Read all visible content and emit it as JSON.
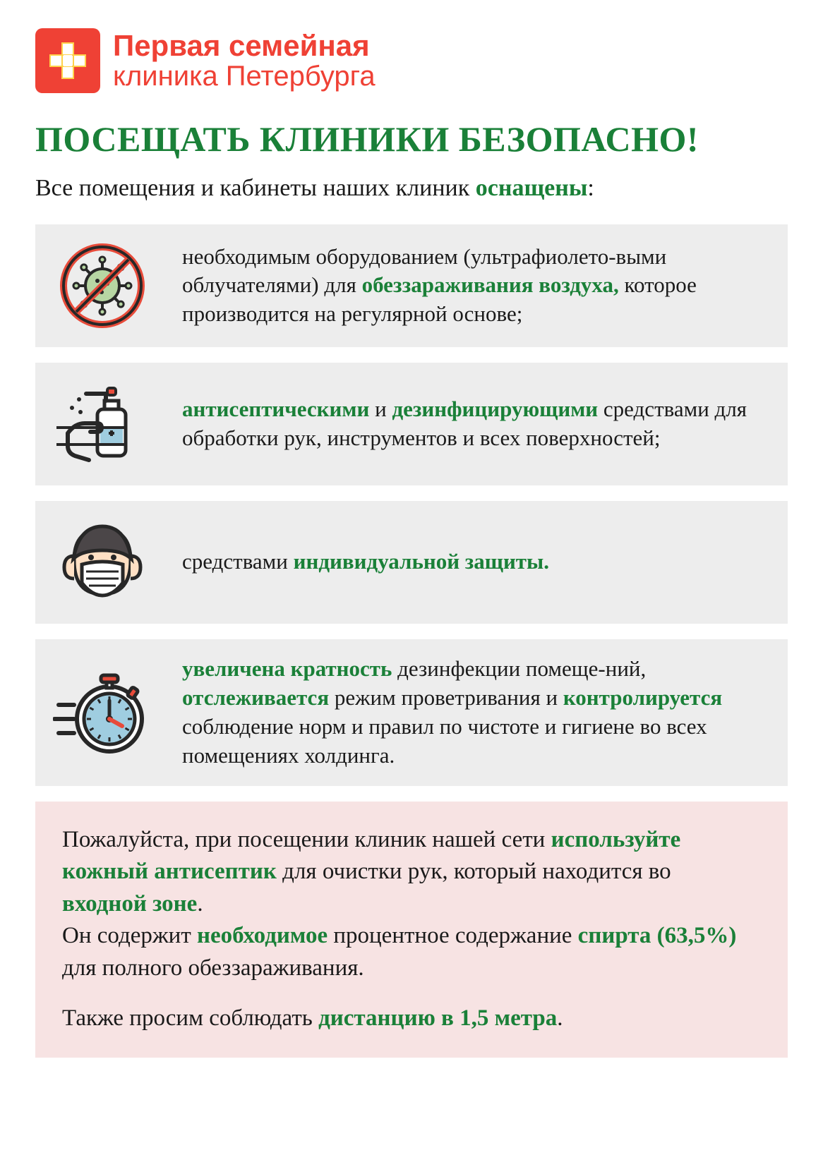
{
  "colors": {
    "red": "#ef4135",
    "green": "#1a8038",
    "card_bg": "#ededed",
    "notice_bg": "#f7e3e3",
    "text": "#1a1a1a",
    "white": "#ffffff",
    "icon_stroke": "#272727",
    "icon_accent_red": "#e84b3a",
    "icon_accent_blue": "#9fcde0",
    "icon_accent_green": "#b7d6a3",
    "icon_skin": "#ffe0c4",
    "icon_hair": "#4b4648"
  },
  "typography": {
    "headline_fontsize": 50,
    "subhead_fontsize": 34,
    "card_fontsize": 31,
    "notice_fontsize": 33,
    "logo_line1_fontsize": 42,
    "logo_line2_fontsize": 40
  },
  "logo": {
    "line1": "Первая семейная",
    "line2": "клиника Петербурга"
  },
  "headline": "ПОСЕЩАТЬ КЛИНИКИ БЕЗОПАСНО!",
  "subhead": {
    "pre": "Все помещения и кабинеты наших клиник ",
    "em": "оснащены",
    "post": ":"
  },
  "cards": [
    {
      "icon": "no-virus-icon",
      "segments": [
        {
          "t": "необходимым оборудованием (ультрафиолето‐выми облучателями) для ",
          "em": false
        },
        {
          "t": "обеззараживания воздуха,",
          "em": true
        },
        {
          "t": " которое производится на регулярной основе;",
          "em": false
        }
      ]
    },
    {
      "icon": "sanitizer-icon",
      "segments": [
        {
          "t": "антисептическими",
          "em": true
        },
        {
          "t": " и ",
          "em": false
        },
        {
          "t": "дезинфицирующими",
          "em": true
        },
        {
          "t": " средствами для обработки рук, инструментов и всех поверхностей;",
          "em": false
        }
      ]
    },
    {
      "icon": "mask-face-icon",
      "segments": [
        {
          "t": "средствами ",
          "em": false
        },
        {
          "t": "индивидуальной защиты.",
          "em": true
        }
      ]
    },
    {
      "icon": "stopwatch-icon",
      "segments": [
        {
          "t": "увеличена кратность",
          "em": true
        },
        {
          "t": " дезинфекции помеще‐ний, ",
          "em": false
        },
        {
          "t": "отслеживается",
          "em": true
        },
        {
          "t": " режим проветривания и ",
          "em": false
        },
        {
          "t": "контролируется",
          "em": true
        },
        {
          "t": " соблюдение норм и правил по чистоте и гигиене во всех помещениях холдинга.",
          "em": false
        }
      ]
    }
  ],
  "notice": {
    "p1": [
      {
        "t": "Пожалуйста, при посещении клиник нашей сети ",
        "em": false
      },
      {
        "t": "используйте кожный антисептик",
        "em": true
      },
      {
        "t": " для очистки рук, который находится во ",
        "em": false
      },
      {
        "t": "входной зоне",
        "em": true
      },
      {
        "t": ".\nОн содержит ",
        "em": false
      },
      {
        "t": "необходимое",
        "em": true
      },
      {
        "t": " процентное содержание ",
        "em": false
      },
      {
        "t": "спирта (63,5%)",
        "em": true
      },
      {
        "t": " для полного обеззараживания.",
        "em": false
      }
    ],
    "p2": [
      {
        "t": "Также просим соблюдать ",
        "em": false
      },
      {
        "t": "дистанцию в 1,5 метра",
        "em": true
      },
      {
        "t": ".",
        "em": false
      }
    ]
  }
}
